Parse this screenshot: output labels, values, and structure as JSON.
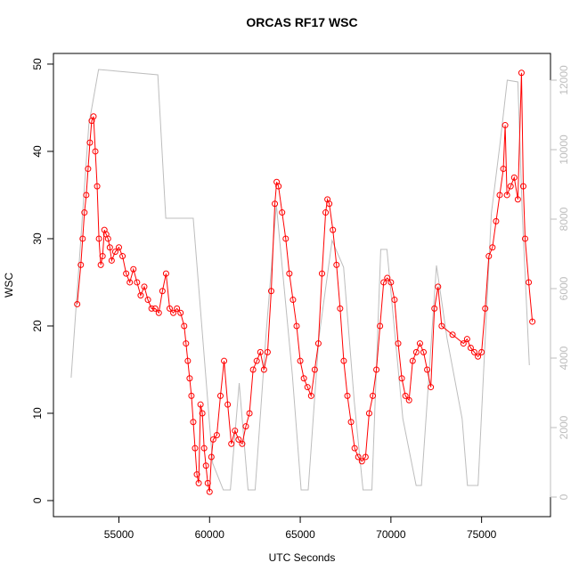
{
  "chart_data": {
    "type": "line",
    "title": "ORCAS RF17 WSC",
    "x_label": "UTC Seconds",
    "y_label": "WSC",
    "xlim": [
      51390,
      78800
    ],
    "xticks": [
      55000,
      60000,
      65000,
      70000,
      75000
    ],
    "ylim": [
      -1.84,
      51.22
    ],
    "yticks": [
      0,
      10,
      20,
      30,
      40,
      50
    ],
    "y2lim": [
      -564,
      12769
    ],
    "y2ticks": [
      0,
      2000,
      4000,
      6000,
      8000,
      10000,
      12000
    ],
    "y2_color": "#bdbdbd",
    "series": [
      {
        "color": "#ff0000",
        "marker": "circle",
        "x": [
          52700,
          52900,
          53000,
          53100,
          53200,
          53300,
          53400,
          53500,
          53600,
          53700,
          53800,
          53900,
          54000,
          54100,
          54200,
          54300,
          54400,
          54500,
          54600,
          54800,
          55000,
          55200,
          55400,
          55600,
          55800,
          56000,
          56200,
          56400,
          56600,
          56800,
          57000,
          57200,
          57400,
          57600,
          57800,
          58000,
          58200,
          58400,
          58600,
          58700,
          58800,
          58900,
          59000,
          59100,
          59200,
          59300,
          59400,
          59500,
          59600,
          59700,
          59800,
          59900,
          60000,
          60100,
          60200,
          60400,
          60600,
          60800,
          61000,
          61200,
          61400,
          61600,
          61800,
          62000,
          62200,
          62400,
          62600,
          62800,
          63000,
          63200,
          63400,
          63600,
          63700,
          63800,
          64000,
          64200,
          64400,
          64600,
          64800,
          65000,
          65200,
          65400,
          65600,
          65800,
          66000,
          66200,
          66400,
          66500,
          66600,
          66800,
          67000,
          67200,
          67400,
          67600,
          67800,
          68000,
          68200,
          68400,
          68600,
          68800,
          69000,
          69200,
          69400,
          69600,
          69800,
          70000,
          70200,
          70400,
          70600,
          70800,
          71000,
          71200,
          71400,
          71600,
          71800,
          72000,
          72200,
          72400,
          72600,
          72800,
          73400,
          74000,
          74200,
          74400,
          74600,
          74800,
          75000,
          75200,
          75400,
          75600,
          75800,
          76000,
          76200,
          76300,
          76400,
          76600,
          76800,
          77000,
          77200,
          77300,
          77400,
          77600,
          77800
        ],
        "values": [
          22.5,
          27,
          30,
          33,
          35,
          38,
          41,
          43.5,
          44,
          40,
          36,
          30,
          27,
          28,
          31,
          30.5,
          30,
          29,
          27.5,
          28.5,
          29,
          28,
          26,
          25,
          26.5,
          25,
          23.5,
          24.5,
          23,
          22,
          22,
          21.5,
          24,
          26,
          22,
          21.5,
          22,
          21.5,
          20,
          18,
          16,
          14,
          12,
          9,
          6,
          3,
          2,
          11,
          10,
          6,
          4,
          2,
          1,
          5,
          7,
          7.5,
          12,
          16,
          11,
          6.5,
          8,
          7,
          6.5,
          8.5,
          10,
          15,
          16,
          17,
          15,
          17,
          24,
          34,
          36.5,
          36,
          33,
          30,
          26,
          23,
          20,
          16,
          14,
          13,
          12,
          15,
          18,
          26,
          33,
          34.5,
          34,
          31,
          27,
          22,
          16,
          12,
          9,
          6,
          5,
          4.5,
          5,
          10,
          12,
          15,
          20,
          25,
          25.5,
          25,
          23,
          18,
          14,
          12,
          11.5,
          16,
          17,
          18,
          17,
          15,
          13,
          22,
          24.5,
          20,
          19,
          18,
          18.5,
          17.5,
          17,
          16.5,
          17,
          22,
          28,
          29,
          32,
          35,
          38,
          43,
          35,
          36,
          37,
          34.5,
          49,
          36,
          30,
          25,
          20.5
        ]
      },
      {
        "color": "#bdbdbd",
        "axis": "y2",
        "x": [
          52366,
          53341,
          53878,
          57146,
          57585,
          59098,
          60171,
          60756,
          61146,
          61634,
          62122,
          62512,
          63097,
          63683,
          64561,
          65049,
          65439,
          66024,
          66756,
          67390,
          67976,
          68463,
          68951,
          69439,
          69780,
          70658,
          71390,
          71683,
          72512,
          73097,
          73927,
          74220,
          74805,
          75537,
          76024,
          76415,
          77000,
          77244,
          77634
        ],
        "values": [
          3436,
          10718,
          12308,
          12154,
          8026,
          8026,
          974,
          205,
          205,
          3282,
          205,
          205,
          4564,
          8410,
          3538,
          205,
          205,
          4564,
          7385,
          6615,
          2769,
          205,
          205,
          7128,
          7128,
          2256,
          333,
          333,
          6667,
          4564,
          2256,
          333,
          333,
          8154,
          10205,
          12000,
          11949,
          8154,
          3795
        ]
      }
    ]
  }
}
